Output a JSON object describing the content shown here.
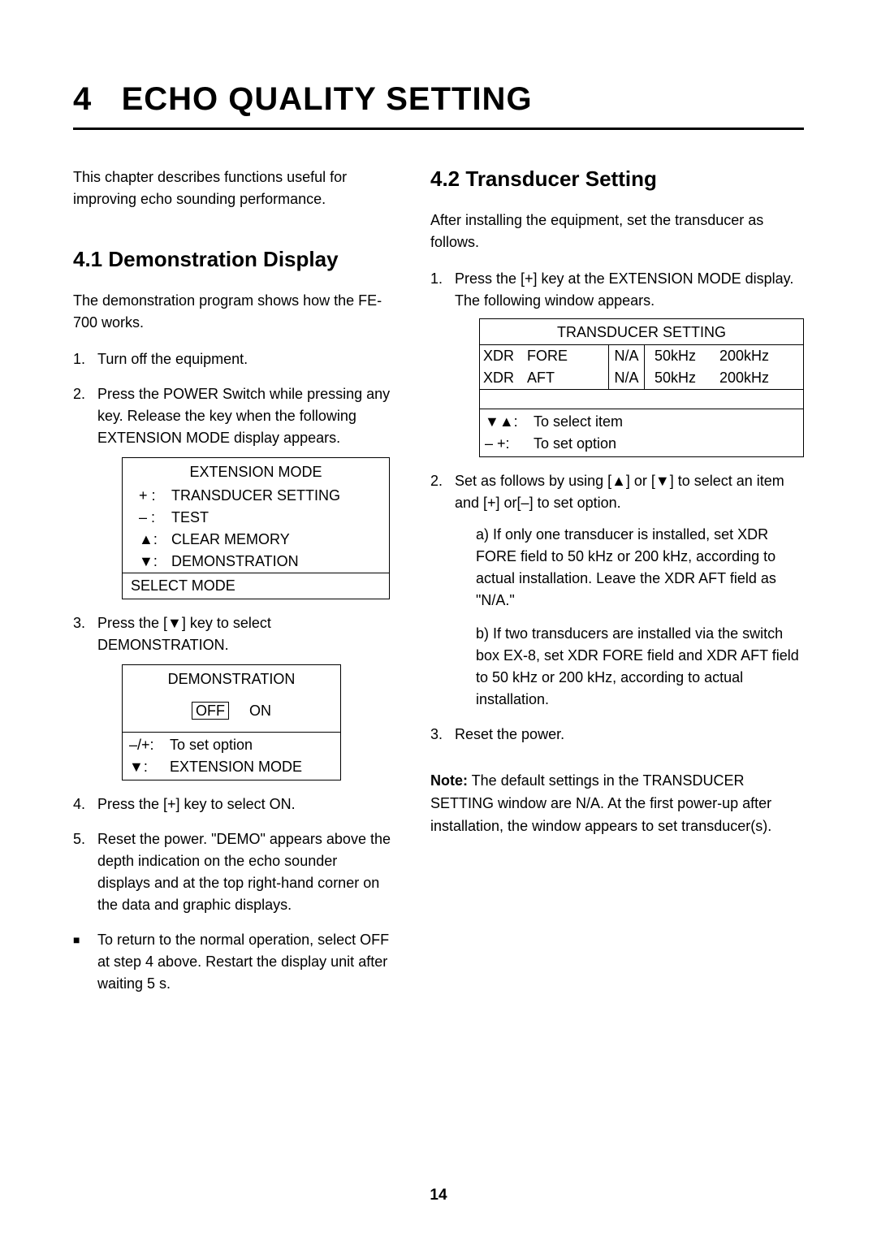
{
  "chapter": {
    "number": "4",
    "title": "ECHO QUALITY SETTING"
  },
  "intro": "This chapter describes functions useful for improving echo sounding performance.",
  "section41": {
    "heading": "4.1 Demonstration Display",
    "lead": "The demonstration program shows how the FE-700 works.",
    "step1": "Turn off the equipment.",
    "step2": "Press the POWER Switch while pressing any key. Release the key when the following EXTENSION MODE display appears.",
    "extension_box": {
      "title": "EXTENSION MODE",
      "rows": [
        {
          "sym": "+ :",
          "label": "TRANSDUCER SETTING"
        },
        {
          "sym": "– :",
          "label": "TEST"
        },
        {
          "sym": "▲:",
          "label": "CLEAR MEMORY"
        },
        {
          "sym": "▼:",
          "label": "DEMONSTRATION"
        }
      ],
      "footer": "SELECT MODE"
    },
    "step3": "Press the [▼] key to select DEMONSTRATION.",
    "demo_box": {
      "title": "DEMONSTRATION",
      "off": "OFF",
      "on": "ON",
      "footer": [
        {
          "sym": "–/+:",
          "label": "To set option"
        },
        {
          "sym": "▼:",
          "label": "EXTENSION MODE"
        }
      ]
    },
    "step4": "Press the [+] key to select ON.",
    "step5": "Reset the power. \"DEMO\" appears above the depth indication on the echo sounder displays and at the top right-hand corner on the data and graphic displays.",
    "bullet": "To return to the normal operation, select OFF at step 4 above. Restart the display unit after waiting 5 s."
  },
  "section42": {
    "heading": "4.2 Transducer Setting",
    "lead": "After installing the equipment, set the transducer as follows.",
    "step1": "Press the [+] key at the EXTENSION MODE display. The following window appears.",
    "tx_box": {
      "title": "TRANSDUCER SETTING",
      "rows": [
        {
          "c1": "XDR",
          "c2": "FORE",
          "c3": "N/A",
          "c4": "50kHz",
          "c5": "200kHz"
        },
        {
          "c1": "XDR",
          "c2": "AFT",
          "c3": "N/A",
          "c4": "50kHz",
          "c5": "200kHz"
        }
      ],
      "footer": [
        {
          "sym": "▼▲:",
          "label": "To select item"
        },
        {
          "sym": "–  +:",
          "label": "To set option"
        }
      ]
    },
    "step2": "Set as follows by using [▲] or [▼] to select an item and [+] or[–] to set option.",
    "sub_a": "a) If only one transducer is installed, set XDR FORE field to 50 kHz or 200 kHz, according to actual installation. Leave the XDR AFT field as \"N/A.\"",
    "sub_b": "b) If two transducers are installed via the switch box EX-8, set XDR FORE field and XDR AFT field to 50 kHz or 200 kHz, according to actual installation.",
    "step3": "Reset the power.",
    "note_label": "Note:",
    "note_text": " The default settings in the TRANSDUCER SETTING window are N/A. At the first power-up after installation, the window appears to set transducer(s)."
  },
  "page_number": "14"
}
